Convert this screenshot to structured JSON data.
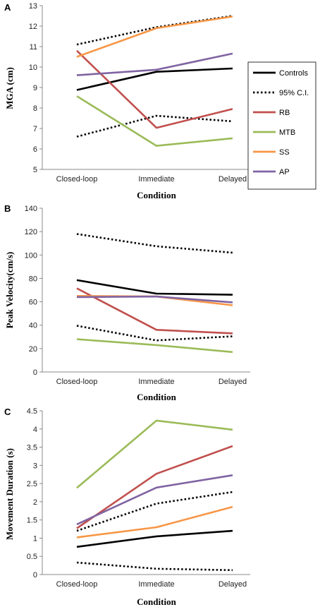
{
  "colors": {
    "Controls": "#000000",
    "95% C.I.": "#000000",
    "RB": "#c0504d",
    "MTB": "#9bbb59",
    "SS": "#f79646",
    "AP": "#8064a2"
  },
  "chart_data": [
    {
      "panel": "A",
      "type": "line",
      "xlabel": "Condition",
      "ylabel": "MGA (cm)",
      "categories": [
        "Closed-loop",
        "Immediate",
        "Delayed"
      ],
      "ylim": [
        5,
        13
      ],
      "yticks": [
        5,
        6,
        7,
        8,
        9,
        10,
        11,
        12,
        13
      ],
      "legend": {
        "position": "right",
        "entries": [
          "Controls",
          "95% C.I.",
          "RB",
          "MTB",
          "SS",
          "AP"
        ]
      },
      "series": [
        {
          "name": "Controls",
          "values": [
            8.88,
            9.77,
            9.93
          ],
          "style": "solid"
        },
        {
          "name": "95% C.I.",
          "values": [
            11.1,
            11.95,
            12.5
          ],
          "style": "dotted"
        },
        {
          "name": "95% C.I.",
          "values": [
            6.6,
            7.62,
            7.35
          ],
          "style": "dotted"
        },
        {
          "name": "RB",
          "values": [
            10.8,
            7.03,
            7.95
          ],
          "style": "solid"
        },
        {
          "name": "MTB",
          "values": [
            8.58,
            6.15,
            6.52
          ],
          "style": "solid"
        },
        {
          "name": "SS",
          "values": [
            10.5,
            11.9,
            12.47
          ],
          "style": "solid"
        },
        {
          "name": "AP",
          "values": [
            9.6,
            9.87,
            10.66
          ],
          "style": "solid"
        }
      ]
    },
    {
      "panel": "B",
      "type": "line",
      "xlabel": "Condition",
      "ylabel": "Peak Velocity(cm/s)",
      "categories": [
        "Closed-loop",
        "Immediate",
        "Delayed"
      ],
      "ylim": [
        0,
        140
      ],
      "yticks": [
        0,
        20,
        40,
        60,
        80,
        100,
        120,
        140
      ],
      "series": [
        {
          "name": "Controls",
          "values": [
            78.5,
            67,
            66
          ],
          "style": "solid"
        },
        {
          "name": "95% C.I.",
          "values": [
            118,
            107.5,
            102
          ],
          "style": "dotted"
        },
        {
          "name": "95% C.I.",
          "values": [
            39.5,
            27,
            30.5
          ],
          "style": "dotted"
        },
        {
          "name": "RB",
          "values": [
            71.5,
            36,
            33
          ],
          "style": "solid"
        },
        {
          "name": "MTB",
          "values": [
            28,
            23,
            17
          ],
          "style": "solid"
        },
        {
          "name": "SS",
          "values": [
            65,
            64.5,
            57
          ],
          "style": "solid"
        },
        {
          "name": "AP",
          "values": [
            64,
            64.5,
            59.5
          ],
          "style": "solid"
        }
      ]
    },
    {
      "panel": "C",
      "type": "line",
      "xlabel": "Condition",
      "ylabel": "Movement Duration (s)",
      "categories": [
        "Closed-loop",
        "Immediate",
        "Delayed"
      ],
      "ylim": [
        0,
        4.5
      ],
      "yticks": [
        "0",
        "0.5",
        "1",
        "1.5",
        "2",
        "2.5",
        "3",
        "3.5",
        "4",
        "4.5"
      ],
      "series": [
        {
          "name": "Controls",
          "values": [
            0.76,
            1.05,
            1.2
          ],
          "style": "solid"
        },
        {
          "name": "95% C.I.",
          "values": [
            1.2,
            1.95,
            2.27
          ],
          "style": "dotted"
        },
        {
          "name": "95% C.I.",
          "values": [
            0.33,
            0.16,
            0.12
          ],
          "style": "dotted"
        },
        {
          "name": "RB",
          "values": [
            1.27,
            2.77,
            3.53
          ],
          "style": "solid"
        },
        {
          "name": "MTB",
          "values": [
            2.38,
            4.23,
            3.98
          ],
          "style": "solid"
        },
        {
          "name": "SS",
          "values": [
            1.02,
            1.3,
            1.86
          ],
          "style": "solid"
        },
        {
          "name": "AP",
          "values": [
            1.38,
            2.39,
            2.73
          ],
          "style": "solid"
        }
      ]
    }
  ]
}
